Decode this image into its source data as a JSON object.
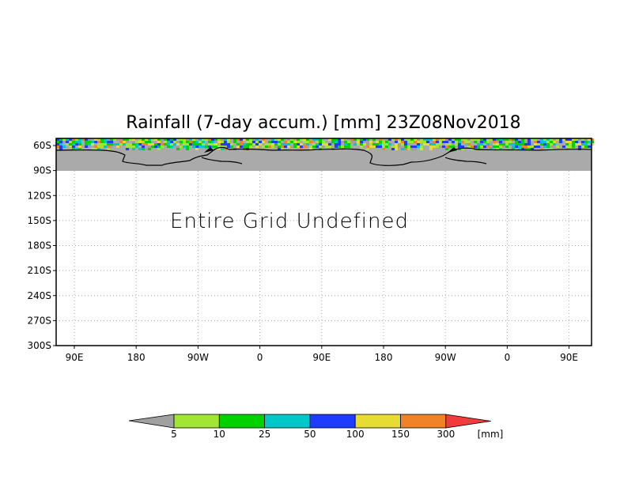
{
  "title": "Rainfall (7-day accum.) [mm] 23Z08Nov2018",
  "message": "Entire Grid Undefined",
  "map": {
    "y_labels": [
      "60S",
      "90S",
      "120S",
      "150S",
      "180S",
      "210S",
      "240S",
      "270S",
      "300S"
    ],
    "x_labels": [
      "90E",
      "180",
      "90W",
      "0",
      "90E",
      "180",
      "90W",
      "0",
      "90E"
    ],
    "undefined_region_color": "#aaaaaa",
    "coastline_color": "#000000",
    "grid_line_style": "dotted"
  },
  "colorbar": {
    "unit": "[mm]",
    "labels": [
      "5",
      "10",
      "25",
      "50",
      "100",
      "150",
      "300"
    ],
    "colors": [
      "#a0a0a0",
      "#a0e632",
      "#00d200",
      "#00c8c8",
      "#1e3cff",
      "#e6dc32",
      "#f08228",
      "#f03c3c"
    ]
  }
}
